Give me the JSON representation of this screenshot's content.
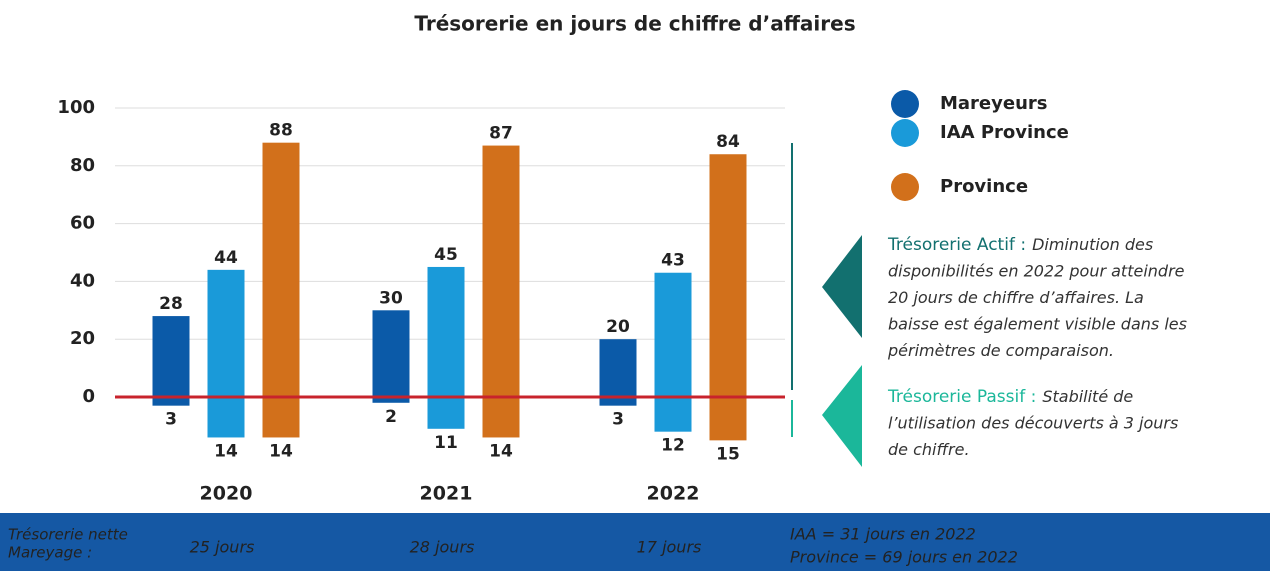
{
  "chart_data": {
    "type": "bar",
    "title": "Trésorerie en jours de chiffre d’affaires",
    "categories": [
      "2020",
      "2021",
      "2022"
    ],
    "series": [
      {
        "name": "Mareyeurs",
        "color": "#0b5aa8",
        "values": [
          28,
          30,
          20
        ],
        "negative_values": [
          -3,
          -2,
          -3
        ],
        "negative_value_labels": [
          "3",
          "2",
          "3"
        ]
      },
      {
        "name": "IAA Province",
        "color": "#1a9ad9",
        "values": [
          44,
          45,
          43
        ],
        "negative_values": [
          -14,
          -11,
          -12
        ],
        "negative_value_labels": [
          "14",
          "11",
          "12"
        ]
      },
      {
        "name": "Province",
        "color": "#d2701b",
        "values": [
          88,
          87,
          84
        ],
        "negative_values": [
          -14,
          -14,
          -15
        ],
        "negative_value_labels": [
          "14",
          "14",
          "15"
        ]
      }
    ],
    "ylim": [
      -16,
      100
    ],
    "yticks": [
      0,
      20,
      40,
      60,
      80,
      100
    ],
    "grid": true,
    "zero_line_color": "#c8232c",
    "annotations": [
      {
        "label": "Trésorerie Actif :",
        "lines": [
          "Diminution des",
          "disponibilités en 2022 pour atteindre",
          "20 jours de chiffre d’affaires. La",
          "baisse est également visible dans les",
          "périmètres de comparaison."
        ]
      },
      {
        "label": "Trésorerie Passif :",
        "lines": [
          "Stabilité de",
          "l’utilisation des découverts à 3 jours",
          "de chiffre."
        ]
      }
    ],
    "footer": {
      "label_lines": [
        "Trésorerie nette",
        "Mareyage :"
      ],
      "values": [
        "25 jours",
        "28 jours",
        "17 jours"
      ],
      "notes": [
        "IAA = 31 jours en 2022",
        "Province = 69 jours en 2022"
      ]
    }
  }
}
